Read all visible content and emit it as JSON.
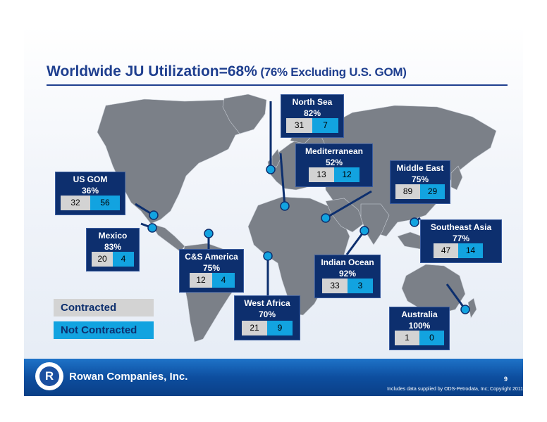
{
  "title": {
    "main": "Worldwide JU Utilization=68%",
    "sub": "(76% Excluding U.S. GOM)"
  },
  "regions": [
    {
      "name": "North Sea",
      "pct": "82%",
      "contracted": "31",
      "not_contracted": "7"
    },
    {
      "name": "Mediterranean",
      "pct": "52%",
      "contracted": "13",
      "not_contracted": "12"
    },
    {
      "name": "Middle East",
      "pct": "75%",
      "contracted": "89",
      "not_contracted": "29"
    },
    {
      "name": "US GOM",
      "pct": "36%",
      "contracted": "32",
      "not_contracted": "56"
    },
    {
      "name": "Southeast Asia",
      "pct": "77%",
      "contracted": "47",
      "not_contracted": "14"
    },
    {
      "name": "Mexico",
      "pct": "83%",
      "contracted": "20",
      "not_contracted": "4"
    },
    {
      "name": "C&S America",
      "pct": "75%",
      "contracted": "12",
      "not_contracted": "4"
    },
    {
      "name": "Indian Ocean",
      "pct": "92%",
      "contracted": "33",
      "not_contracted": "3"
    },
    {
      "name": "West Africa",
      "pct": "70%",
      "contracted": "21",
      "not_contracted": "9"
    },
    {
      "name": "Australia",
      "pct": "100%",
      "contracted": "1",
      "not_contracted": "0"
    }
  ],
  "legend": {
    "contracted": "Contracted",
    "not_contracted": "Not Contracted"
  },
  "colors": {
    "box": "#0d2f6e",
    "contracted": "#d3d3d3",
    "not_contracted": "#12a3e0",
    "map": "#7b8088",
    "title": "#1f3f8f"
  },
  "footer": {
    "company": "Rowan Companies, Inc.",
    "page_number": "9",
    "source": "Includes data supplied by ODS-Petrodata, Inc; Copyright 2011"
  }
}
